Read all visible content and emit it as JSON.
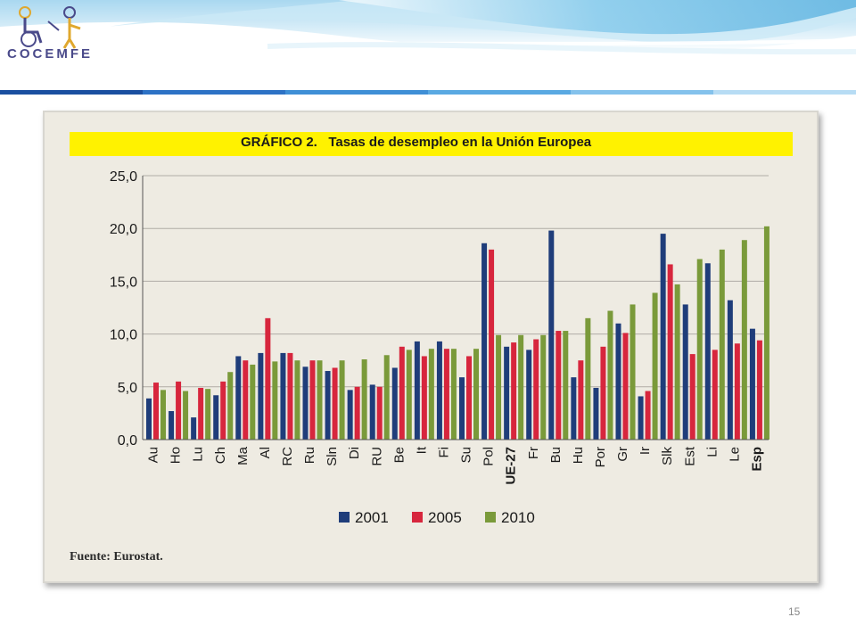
{
  "slide": {
    "logo_text": "COCEMFE",
    "page_number": "15"
  },
  "chart_data": {
    "type": "bar",
    "title": "GRÁFICO 2.   Tasas de desempleo en la Unión Europea",
    "source": "Fuente: Eurostat.",
    "xlabel": "",
    "ylabel": "",
    "ylim": [
      0,
      25
    ],
    "yticks": [
      "0,0",
      "5,0",
      "10,0",
      "15,0",
      "20,0",
      "25,0"
    ],
    "grid": true,
    "legend_position": "bottom",
    "bold_categories": [
      "UE-27",
      "Esp"
    ],
    "categories": [
      "Au",
      "Ho",
      "Lu",
      "Ch",
      "Ma",
      "Al",
      "RC",
      "Ru",
      "Sln",
      "Di",
      "RU",
      "Be",
      "It",
      "Fi",
      "Su",
      "Pol",
      "UE-27",
      "Fr",
      "Bu",
      "Hu",
      "Por",
      "Gr",
      "Ir",
      "Slk",
      "Est",
      "Li",
      "Le",
      "Esp"
    ],
    "series": [
      {
        "name": "2001",
        "color": "#1f3d7a",
        "values": [
          3.9,
          2.7,
          2.1,
          4.2,
          7.9,
          8.2,
          8.2,
          6.9,
          6.5,
          4.7,
          5.2,
          6.8,
          9.3,
          9.3,
          5.9,
          18.6,
          8.8,
          8.5,
          19.8,
          5.9,
          4.9,
          11.0,
          4.1,
          19.5,
          12.8,
          16.7,
          13.2,
          10.5
        ]
      },
      {
        "name": "2005",
        "color": "#d7263d",
        "values": [
          5.4,
          5.5,
          4.9,
          5.5,
          7.5,
          11.5,
          8.2,
          7.5,
          6.8,
          5.0,
          5.0,
          8.8,
          7.9,
          8.6,
          7.9,
          18.0,
          9.2,
          9.5,
          10.3,
          7.5,
          8.8,
          10.1,
          4.6,
          16.6,
          8.1,
          8.5,
          9.1,
          9.4
        ]
      },
      {
        "name": "2010",
        "color": "#7a9a3a",
        "values": [
          4.7,
          4.6,
          4.8,
          6.4,
          7.1,
          7.4,
          7.5,
          7.5,
          7.5,
          7.6,
          8.0,
          8.5,
          8.6,
          8.6,
          8.6,
          9.9,
          9.9,
          9.9,
          10.3,
          11.5,
          12.2,
          12.8,
          13.9,
          14.7,
          17.1,
          18.0,
          18.9,
          20.2
        ]
      }
    ]
  }
}
